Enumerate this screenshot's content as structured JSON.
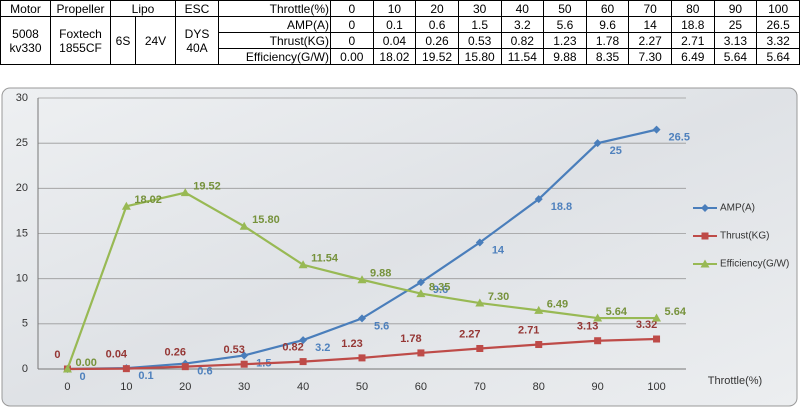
{
  "table": {
    "headers": [
      "Motor",
      "Propeller",
      "Lipo",
      "ESC"
    ],
    "specs": [
      "5008 kv330",
      "Foxtech 1855CF",
      "6S",
      "24V",
      "DYS 40A"
    ]
  },
  "chart_data": {
    "type": "line",
    "x_label": "Throttle(%)",
    "categories": [
      "0",
      "10",
      "20",
      "30",
      "40",
      "50",
      "60",
      "70",
      "80",
      "90",
      "100"
    ],
    "series": [
      {
        "name": "AMP(A)",
        "color": "#4a7ebb",
        "label_color": "#4f81bd",
        "marker": "diamond",
        "values": [
          0,
          0.1,
          0.6,
          1.5,
          3.2,
          5.6,
          9.6,
          14,
          18.8,
          25,
          26.5
        ]
      },
      {
        "name": "Thrust(KG)",
        "color": "#be4b48",
        "label_color": "#953735",
        "marker": "square",
        "values": [
          0,
          0.04,
          0.26,
          0.53,
          0.82,
          1.23,
          1.78,
          2.27,
          2.71,
          3.13,
          3.32
        ]
      },
      {
        "name": "Efficiency(G/W)",
        "color": "#98b954",
        "label_color": "#76923c",
        "marker": "triangle",
        "values": [
          0,
          18.02,
          19.52,
          15.8,
          11.54,
          9.88,
          8.35,
          7.3,
          6.49,
          5.64,
          5.64
        ],
        "value_labels": [
          "0.00",
          "18.02",
          "19.52",
          "15.80",
          "11.54",
          "9.88",
          "8.35",
          "7.30",
          "6.49",
          "5.64",
          "5.64"
        ]
      }
    ],
    "ylim": [
      0,
      30
    ],
    "yticks": [
      0,
      5,
      10,
      15,
      20,
      25,
      30
    ],
    "grid": true,
    "legend": "right"
  }
}
